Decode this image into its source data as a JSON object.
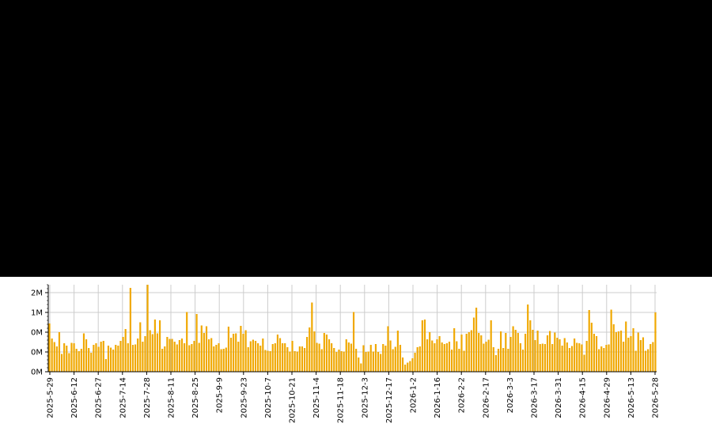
{
  "chart_data": {
    "type": "bar",
    "title": "",
    "xlabel": "",
    "ylabel": "",
    "bar_color": "#f0a800",
    "grid": true,
    "x_start": "2025-05-29",
    "x_end": "2026-05-28",
    "x_tick_labels": [
      "2025-5-29",
      "2025-6-12",
      "2025-6-27",
      "2025-7-14",
      "2025-7-28",
      "2025-8-11",
      "2025-8-25",
      "2025-9-9",
      "2025-9-23",
      "2025-10-7",
      "2025-10-21",
      "2025-11-4",
      "2025-11-18",
      "2025-12-3",
      "2025-12-17",
      "2026-1-2",
      "2026-1-16",
      "2026-2-2",
      "2026-2-17",
      "2026-3-3",
      "2026-3-17",
      "2026-3-31",
      "2026-4-15",
      "2026-4-29",
      "2026-5-13",
      "2026-5-28"
    ],
    "y_tick_labels": [
      "0M",
      "0M",
      "0M",
      "1M",
      "2M"
    ],
    "y_tick_values": [
      0,
      0.5,
      1.0,
      1.5,
      2.0
    ],
    "ylim": [
      0,
      2.2
    ],
    "values": [
      1.22,
      0.84,
      0.75,
      0.64,
      1.0,
      0.45,
      0.72,
      0.66,
      0.47,
      0.73,
      0.72,
      0.58,
      0.52,
      0.58,
      0.97,
      0.82,
      0.6,
      0.48,
      0.68,
      0.72,
      0.63,
      0.76,
      0.78,
      0.32,
      0.66,
      0.61,
      0.56,
      0.68,
      0.66,
      0.78,
      0.88,
      1.08,
      0.72,
      2.12,
      0.68,
      0.69,
      0.84,
      1.25,
      0.76,
      0.9,
      2.2,
      1.05,
      0.95,
      1.32,
      0.97,
      1.3,
      0.58,
      0.64,
      0.88,
      0.83,
      0.83,
      0.76,
      0.69,
      0.8,
      0.84,
      0.72,
      1.51,
      0.67,
      0.7,
      0.78,
      1.46,
      0.73,
      1.17,
      0.98,
      1.15,
      0.82,
      0.85,
      0.64,
      0.68,
      0.72,
      0.57,
      0.58,
      0.61,
      1.14,
      0.86,
      0.96,
      0.97,
      0.76,
      1.16,
      0.96,
      1.05,
      0.62,
      0.77,
      0.81,
      0.78,
      0.72,
      0.66,
      0.84,
      0.55,
      0.53,
      0.52,
      0.7,
      0.72,
      0.94,
      0.85,
      0.72,
      0.72,
      0.62,
      0.51,
      0.78,
      0.52,
      0.51,
      0.64,
      0.64,
      0.6,
      0.88,
      1.12,
      1.75,
      1.02,
      0.73,
      0.71,
      0.57,
      0.98,
      0.94,
      0.82,
      0.72,
      0.6,
      0.5,
      0.56,
      0.52,
      0.51,
      0.82,
      0.74,
      0.71,
      1.51,
      0.58,
      0.36,
      0.21,
      0.67,
      0.5,
      0.51,
      0.68,
      0.51,
      0.7,
      0.5,
      0.45,
      0.7,
      0.66,
      1.15,
      0.79,
      0.57,
      0.63,
      1.04,
      0.68,
      0.36,
      0.18,
      0.23,
      0.27,
      0.34,
      0.48,
      0.62,
      0.64,
      1.3,
      1.32,
      0.82,
      1.0,
      0.79,
      0.72,
      0.82,
      0.9,
      0.74,
      0.7,
      0.72,
      0.76,
      0.56,
      1.1,
      0.77,
      0.58,
      0.94,
      0.53,
      0.96,
      1.0,
      1.05,
      1.37,
      1.62,
      0.98,
      0.92,
      0.71,
      0.76,
      0.81,
      1.3,
      0.62,
      0.42,
      0.58,
      1.02,
      0.6,
      0.98,
      0.58,
      0.88,
      1.15,
      1.06,
      0.98,
      0.72,
      0.56,
      0.96,
      1.7,
      1.3,
      1.06,
      0.8,
      1.04,
      0.7,
      0.71,
      0.7,
      0.92,
      1.03,
      0.7,
      0.99,
      0.86,
      0.82,
      0.66,
      0.85,
      0.74,
      0.6,
      0.65,
      0.84,
      0.73,
      0.72,
      0.69,
      0.43,
      0.78,
      1.56,
      1.24,
      0.96,
      0.9,
      0.57,
      0.64,
      0.6,
      0.68,
      0.69,
      1.57,
      1.2,
      1.0,
      1.02,
      1.04,
      0.76,
      1.27,
      0.86,
      0.9,
      1.1,
      0.53,
      0.99,
      0.8,
      0.87,
      0.53,
      0.57,
      0.7,
      0.75,
      1.5
    ]
  }
}
